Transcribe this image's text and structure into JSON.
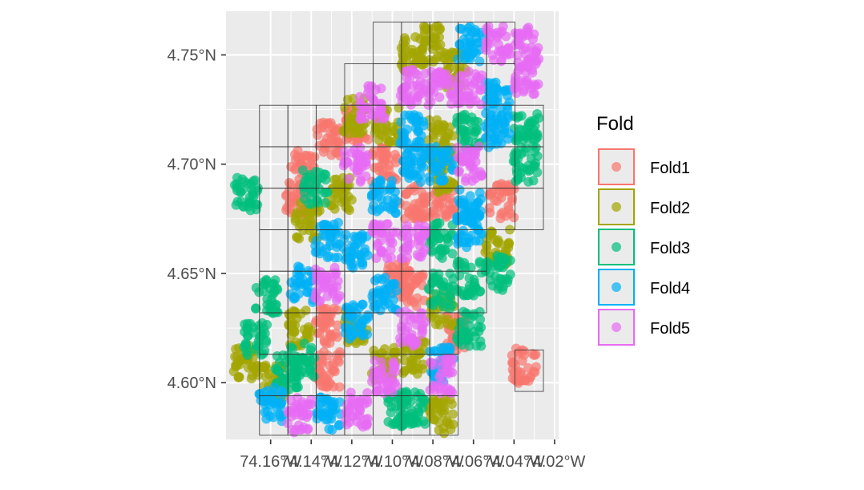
{
  "chart_data": {
    "type": "scatter",
    "title": "",
    "xlabel": "",
    "ylabel": "",
    "xlim": [
      -74.182,
      -74.018
    ],
    "ylim": [
      4.574,
      4.77
    ],
    "x_ticks": [
      {
        "value": -74.16,
        "label": "74.16°W"
      },
      {
        "value": -74.14,
        "label": "74.14°W"
      },
      {
        "value": -74.12,
        "label": "74.12°W"
      },
      {
        "value": -74.1,
        "label": "74.10°W"
      },
      {
        "value": -74.08,
        "label": "74.08°W"
      },
      {
        "value": -74.06,
        "label": "74.06°W"
      },
      {
        "value": -74.04,
        "label": "74.04°W"
      },
      {
        "value": -74.02,
        "label": "74.02°W"
      }
    ],
    "y_ticks": [
      {
        "value": 4.6,
        "label": "4.60°N"
      },
      {
        "value": 4.65,
        "label": "4.65°N"
      },
      {
        "value": 4.7,
        "label": "4.70°N"
      },
      {
        "value": 4.75,
        "label": "4.75°N"
      }
    ],
    "grid": true,
    "legend": {
      "title": "Fold",
      "position": "right",
      "entries": [
        {
          "label": "Fold1",
          "color": "#F8766D"
        },
        {
          "label": "Fold2",
          "color": "#A3A500"
        },
        {
          "label": "Fold3",
          "color": "#00BF7D"
        },
        {
          "label": "Fold4",
          "color": "#00B0F6"
        },
        {
          "label": "Fold5",
          "color": "#E76BF3"
        }
      ]
    },
    "grid_cells": {
      "rows": [
        {
          "ymin": 4.746,
          "ymax": 4.765,
          "xmin": -74.1095,
          "xmax": -74.0395
        },
        {
          "ymin": 4.727,
          "ymax": 4.746,
          "xmin": -74.1235,
          "xmax": -74.0395
        },
        {
          "ymin": 4.708,
          "ymax": 4.727,
          "xmin": -74.1655,
          "xmax": -74.0255
        },
        {
          "ymin": 4.689,
          "ymax": 4.708,
          "xmin": -74.1655,
          "xmax": -74.0255
        },
        {
          "ymin": 4.67,
          "ymax": 4.689,
          "xmin": -74.1655,
          "xmax": -74.0255
        },
        {
          "ymin": 4.651,
          "ymax": 4.67,
          "xmin": -74.1655,
          "xmax": -74.0535
        },
        {
          "ymin": 4.632,
          "ymax": 4.651,
          "xmin": -74.1655,
          "xmax": -74.0535
        },
        {
          "ymin": 4.613,
          "ymax": 4.632,
          "xmin": -74.1655,
          "xmax": -74.0675
        },
        {
          "ymin": 4.594,
          "ymax": 4.613,
          "xmin": -74.1655,
          "xmax": -74.0675
        },
        {
          "ymin": 4.576,
          "ymax": 4.594,
          "xmin": -74.1655,
          "xmax": -74.0675
        }
      ],
      "cell_width": 0.014,
      "extra_cells": [
        {
          "xmin": -74.0395,
          "xmax": -74.0255,
          "ymin": 4.596,
          "ymax": 4.615
        }
      ]
    },
    "series": [
      {
        "name": "Fold1",
        "clusters": [
          [
            -74.104,
            4.7
          ],
          [
            -74.132,
            4.712
          ],
          [
            -74.118,
            4.718
          ],
          [
            -74.148,
            4.685
          ],
          [
            -74.144,
            4.698
          ],
          [
            -74.09,
            4.683
          ],
          [
            -74.076,
            4.683
          ],
          [
            -74.046,
            4.683
          ],
          [
            -74.097,
            4.648
          ],
          [
            -74.09,
            4.643
          ],
          [
            -74.132,
            4.626
          ],
          [
            -74.132,
            4.606
          ],
          [
            -74.069,
            4.623
          ],
          [
            -74.035,
            4.608
          ]
        ]
      },
      {
        "name": "Fold2",
        "clusters": [
          [
            -74.118,
            4.722
          ],
          [
            -74.103,
            4.718
          ],
          [
            -74.142,
            4.674
          ],
          [
            -74.126,
            4.687
          ],
          [
            -74.09,
            4.75
          ],
          [
            -74.08,
            4.755
          ],
          [
            -74.069,
            4.743
          ],
          [
            -74.076,
            4.712
          ],
          [
            -74.076,
            4.695
          ],
          [
            -74.048,
            4.662
          ],
          [
            -74.145,
            4.625
          ],
          [
            -74.118,
            4.625
          ],
          [
            -74.104,
            4.608
          ],
          [
            -74.09,
            4.612
          ],
          [
            -74.075,
            4.633
          ],
          [
            -74.172,
            4.61
          ],
          [
            -74.158,
            4.6
          ],
          [
            -74.076,
            4.585
          ]
        ]
      },
      {
        "name": "Fold3",
        "clusters": [
          [
            -74.062,
            4.715
          ],
          [
            -74.034,
            4.715
          ],
          [
            -74.034,
            4.7
          ],
          [
            -74.138,
            4.69
          ],
          [
            -74.076,
            4.665
          ],
          [
            -74.062,
            4.648
          ],
          [
            -74.076,
            4.642
          ],
          [
            -74.162,
            4.64
          ],
          [
            -74.167,
            4.62
          ],
          [
            -74.152,
            4.605
          ],
          [
            -74.144,
            4.61
          ],
          [
            -74.09,
            4.588
          ],
          [
            -74.097,
            4.588
          ],
          [
            -74.062,
            4.625
          ],
          [
            -74.048,
            4.65
          ],
          [
            -74.172,
            4.687
          ]
        ]
      },
      {
        "name": "Fold4",
        "clusters": [
          [
            -74.062,
            4.755
          ],
          [
            -74.048,
            4.73
          ],
          [
            -74.048,
            4.715
          ],
          [
            -74.09,
            4.715
          ],
          [
            -74.09,
            4.7
          ],
          [
            -74.076,
            4.7
          ],
          [
            -74.104,
            4.685
          ],
          [
            -74.132,
            4.665
          ],
          [
            -74.118,
            4.66
          ],
          [
            -74.062,
            4.67
          ],
          [
            -74.062,
            4.68
          ],
          [
            -74.144,
            4.645
          ],
          [
            -74.118,
            4.628
          ],
          [
            -74.104,
            4.64
          ],
          [
            -74.076,
            4.608
          ],
          [
            -74.16,
            4.59
          ],
          [
            -74.132,
            4.586
          ]
        ]
      },
      {
        "name": "Fold5",
        "clusters": [
          [
            -74.048,
            4.755
          ],
          [
            -74.034,
            4.755
          ],
          [
            -74.034,
            4.74
          ],
          [
            -74.09,
            4.735
          ],
          [
            -74.076,
            4.735
          ],
          [
            -74.062,
            4.735
          ],
          [
            -74.062,
            4.7
          ],
          [
            -74.118,
            4.7
          ],
          [
            -74.104,
            4.665
          ],
          [
            -74.09,
            4.665
          ],
          [
            -74.132,
            4.645
          ],
          [
            -74.09,
            4.625
          ],
          [
            -74.104,
            4.603
          ],
          [
            -74.076,
            4.603
          ],
          [
            -74.118,
            4.588
          ],
          [
            -74.146,
            4.585
          ],
          [
            -74.11,
            4.728
          ]
        ]
      }
    ]
  }
}
